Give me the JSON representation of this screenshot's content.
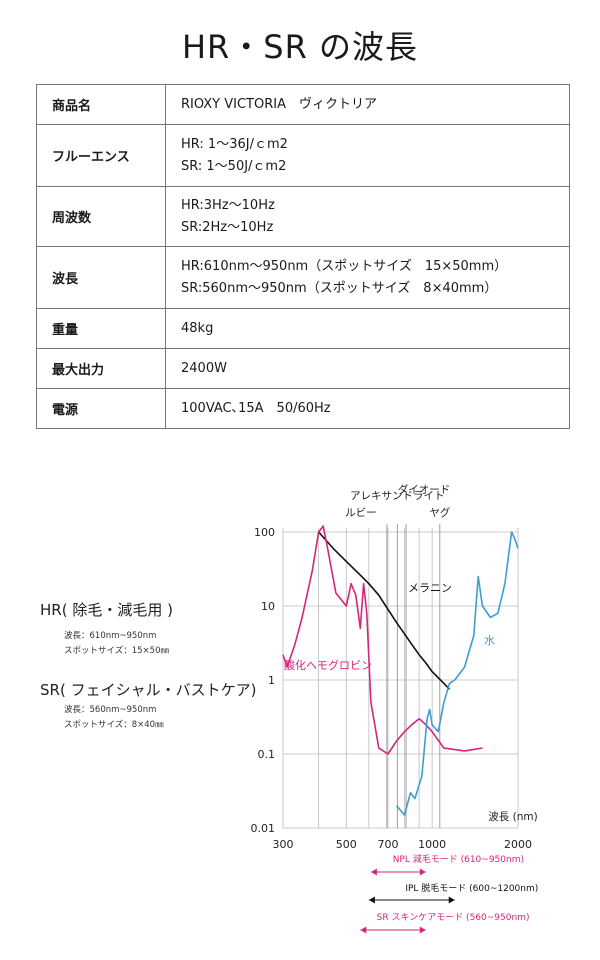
{
  "page_title": "HR・SR の波長",
  "specs": [
    {
      "label": "商品名",
      "lines": [
        "RIOXY VICTORIA　ヴィクトリア"
      ]
    },
    {
      "label": "フルーエンス",
      "lines": [
        "HR: 1〜36J/ｃm2",
        "SR: 1〜50J/ｃm2"
      ]
    },
    {
      "label": "周波数",
      "lines": [
        "HR:3Hz〜10Hz",
        "SR:2Hz〜10Hz"
      ]
    },
    {
      "label": "波長",
      "lines": [
        "HR:610nm〜950nm（スポットサイズ　15×50mm）",
        "SR:560nm〜950nm（スポットサイズ　8×40mm）"
      ]
    },
    {
      "label": "重量",
      "lines": [
        "48kg"
      ]
    },
    {
      "label": "最大出力",
      "lines": [
        "2400W"
      ]
    },
    {
      "label": "電源",
      "lines": [
        "100VAC､15A　50/60Hz"
      ]
    }
  ],
  "modes": {
    "hr": {
      "title": "HR( 除毛・減毛用 )",
      "wavelength": "波長：610nm~950nm",
      "spot": "スポットサイズ：15×50㎜"
    },
    "sr": {
      "title": "SR( フェイシャル・バストケア)",
      "wavelength": "波長：560nm~950nm",
      "spot": "スポットサイズ：8×40㎜"
    }
  },
  "chart_data": {
    "type": "line",
    "xscale": "log",
    "yscale": "log",
    "xlim": [
      300,
      2000
    ],
    "ylim": [
      0.01,
      100
    ],
    "xlabel": "波長 (nm)",
    "x_ticks": [
      300,
      500,
      700,
      1000,
      2000
    ],
    "x_tick_labels": [
      "300",
      "500",
      "700",
      "1000",
      "2000"
    ],
    "y_ticks": [
      0.01,
      0.1,
      1,
      10,
      100
    ],
    "y_tick_labels": [
      "0.01",
      "0.1",
      "1",
      "10",
      "100"
    ],
    "extra_vlines": [
      400,
      600,
      800,
      900
    ],
    "laser_lines": [
      {
        "label": "アレキサンドライト",
        "x": 755
      },
      {
        "label": "ルビー",
        "x": 694
      },
      {
        "label": "ダイオード",
        "x": 810
      },
      {
        "label": "ヤグ",
        "x": 1064
      }
    ],
    "series": [
      {
        "name": "メラニン",
        "color": "#111111",
        "points": [
          [
            400,
            100
          ],
          [
            450,
            60
          ],
          [
            500,
            40
          ],
          [
            550,
            28
          ],
          [
            600,
            20
          ],
          [
            650,
            14
          ],
          [
            700,
            9
          ],
          [
            750,
            6
          ],
          [
            800,
            4.2
          ],
          [
            850,
            3
          ],
          [
            900,
            2.2
          ],
          [
            950,
            1.7
          ],
          [
            1000,
            1.3
          ],
          [
            1100,
            0.9
          ],
          [
            1150,
            0.75
          ]
        ]
      },
      {
        "name": "酸化ヘモグロビン",
        "color": "#d4267a",
        "points": [
          [
            300,
            2.2
          ],
          [
            310,
            1.5
          ],
          [
            330,
            3
          ],
          [
            350,
            7
          ],
          [
            380,
            30
          ],
          [
            400,
            100
          ],
          [
            415,
            120
          ],
          [
            430,
            60
          ],
          [
            460,
            15
          ],
          [
            500,
            10
          ],
          [
            520,
            20
          ],
          [
            540,
            14
          ],
          [
            560,
            5
          ],
          [
            575,
            20
          ],
          [
            590,
            8
          ],
          [
            610,
            0.5
          ],
          [
            650,
            0.12
          ],
          [
            700,
            0.1
          ],
          [
            750,
            0.15
          ],
          [
            800,
            0.2
          ],
          [
            850,
            0.25
          ],
          [
            900,
            0.3
          ],
          [
            950,
            0.25
          ],
          [
            1000,
            0.2
          ],
          [
            1100,
            0.12
          ],
          [
            1300,
            0.11
          ],
          [
            1500,
            0.12
          ]
        ]
      },
      {
        "name": "水",
        "color": "#3d9ed1",
        "points": [
          [
            750,
            0.02
          ],
          [
            800,
            0.015
          ],
          [
            840,
            0.03
          ],
          [
            870,
            0.025
          ],
          [
            920,
            0.05
          ],
          [
            960,
            0.3
          ],
          [
            980,
            0.4
          ],
          [
            1000,
            0.25
          ],
          [
            1050,
            0.2
          ],
          [
            1100,
            0.5
          ],
          [
            1150,
            0.9
          ],
          [
            1200,
            1
          ],
          [
            1300,
            1.5
          ],
          [
            1400,
            4
          ],
          [
            1450,
            25
          ],
          [
            1500,
            10
          ],
          [
            1600,
            7
          ],
          [
            1700,
            8
          ],
          [
            1800,
            20
          ],
          [
            1900,
            100
          ],
          [
            1950,
            80
          ],
          [
            2000,
            60
          ]
        ]
      }
    ],
    "ranges": [
      {
        "label": "NPL 減毛モード (610~950nm)",
        "color": "#d4267a",
        "from": 610,
        "to": 950
      },
      {
        "label": "IPL 脱毛モード (600~1200nm)",
        "color": "#111111",
        "from": 600,
        "to": 1200
      },
      {
        "label": "SR スキンケアモード (560~950nm)",
        "color": "#d4267a",
        "from": 560,
        "to": 950
      }
    ]
  }
}
